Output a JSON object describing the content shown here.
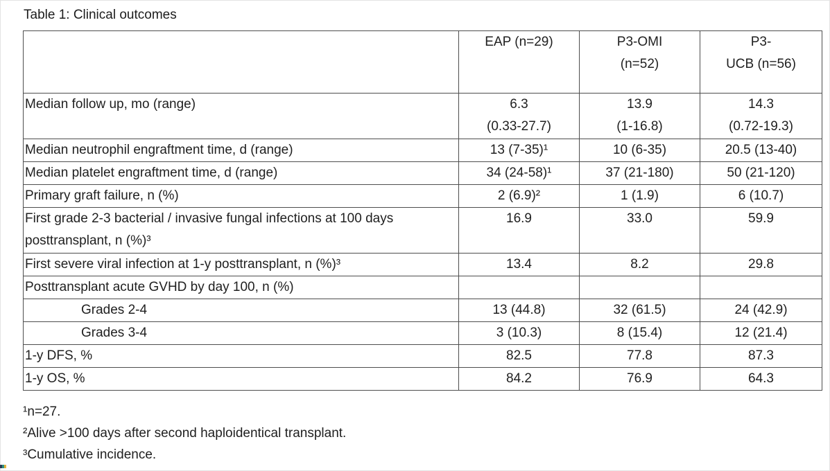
{
  "title": "Table 1: Clinical outcomes",
  "table": {
    "columns": {
      "label": "",
      "eap": "EAP (n=29)",
      "omi": "P3-OMI\n(n=52)",
      "ucb": "P3-\nUCB (n=56)"
    },
    "rows": [
      {
        "label": "Median follow up, mo (range)",
        "values": [
          "6.3\n(0.33-27.7)",
          "13.9\n(1-16.8)",
          "14.3\n(0.72-19.3)"
        ]
      },
      {
        "label": "Median neutrophil engraftment time, d (range)",
        "values": [
          "13 (7-35)¹",
          "10 (6-35)",
          "20.5 (13-40)"
        ]
      },
      {
        "label": "Median platelet engraftment time, d (range)",
        "values": [
          "34 (24-58)¹",
          "37 (21-180)",
          "50 (21-120)"
        ]
      },
      {
        "label": "Primary graft failure, n (%)",
        "values": [
          "2 (6.9)²",
          "1 (1.9)",
          "6 (10.7)"
        ]
      },
      {
        "label": "First grade 2-3 bacterial / invasive fungal infections at 100 days posttransplant, n (%)³",
        "values": [
          "16.9",
          "33.0",
          "59.9"
        ]
      },
      {
        "label": "First severe viral infection at 1-y posttransplant, n (%)³",
        "values": [
          "13.4",
          "8.2",
          "29.8"
        ]
      },
      {
        "label": "Posttransplant acute GVHD by day 100, n (%)",
        "values": [
          "",
          "",
          ""
        ]
      },
      {
        "label": "Grades 2-4",
        "values": [
          "13 (44.8)",
          "32 (61.5)",
          "24 (42.9)"
        ]
      },
      {
        "label": "Grades 3-4",
        "values": [
          "3 (10.3)",
          "8 (15.4)",
          "12 (21.4)"
        ]
      },
      {
        "label": "1-y DFS, %",
        "values": [
          "82.5",
          "77.8",
          "87.3"
        ]
      },
      {
        "label": "1-y OS, %",
        "values": [
          "84.2",
          "76.9",
          "64.3"
        ]
      }
    ]
  },
  "footnotes": [
    "¹n=27.",
    "²Alive >100 days after second haploidentical transplant.",
    "³Cumulative incidence."
  ],
  "colors": {
    "text": "#1f1f1f",
    "table_border": "#4d4d4d",
    "artifact_swatches": [
      "#2b3a55",
      "#2e8f82",
      "#e3b33c"
    ]
  }
}
